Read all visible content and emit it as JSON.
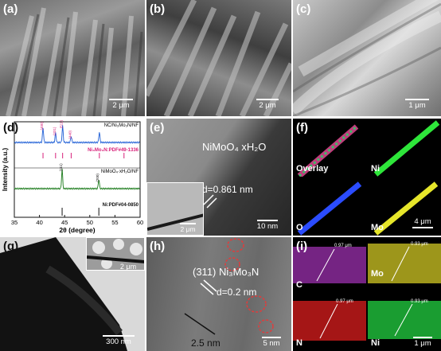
{
  "figure": {
    "panels": {
      "a": {
        "label": "(a)",
        "scale": "2 μm"
      },
      "b": {
        "label": "(b)",
        "scale": "2 μm"
      },
      "c": {
        "label": "(c)",
        "scale": "1 μm"
      },
      "d": {
        "label": "(d)"
      },
      "e": {
        "label": "(e)",
        "phase": "NiMoO₄ xH₂O",
        "dspacing": "d=0.861 nm",
        "scale_main": "10 nm",
        "scale_inset": "2 μm"
      },
      "f": {
        "label": "(f)",
        "maps": [
          "Overlay",
          "Ni",
          "O",
          "Mo"
        ],
        "scale": "4 μm"
      },
      "g": {
        "label": "(g)",
        "scale_main": "300 nm",
        "scale_inset": "2 μm"
      },
      "h": {
        "label": "(h)",
        "plane": "(311) Ni₃Mo₃N",
        "dspacing": "d=0.2 nm",
        "measure": "2.5 nm",
        "scale": "5 nm"
      },
      "i": {
        "label": "(i)",
        "maps": [
          "C",
          "Mo",
          "N",
          "Ni"
        ],
        "scale": "1 μm",
        "line_labels": [
          "0.97 μm",
          "0.93 μm",
          "0.97 μm",
          "0.93 μm"
        ]
      }
    }
  },
  "chart_data": {
    "type": "line",
    "xlabel": "2θ (degree)",
    "ylabel": "Intensity (a.u.)",
    "xlim": [
      35,
      60
    ],
    "xticks": [
      35,
      40,
      45,
      50,
      55,
      60
    ],
    "series": [
      {
        "name": "NC/Ni₃Mo₃N/NF",
        "color": "#1f5fd6",
        "peaks": [
          {
            "x": 40.7,
            "h": 0.85
          },
          {
            "x": 43.2,
            "h": 0.55
          },
          {
            "x": 44.6,
            "h": 0.95
          },
          {
            "x": 46.3,
            "h": 0.35
          },
          {
            "x": 51.9,
            "h": 0.6
          }
        ],
        "peak_labels": [
          "(400)",
          "(331)",
          "(511)",
          "(440)"
        ]
      },
      {
        "name": "NiMoO₄·xH₂O/NF",
        "color": "#1a7a1a",
        "peaks": [
          {
            "x": 44.5,
            "h": 0.95
          },
          {
            "x": 51.8,
            "h": 0.45
          }
        ],
        "peak_labels": [
          "(111)",
          "(200)"
        ]
      }
    ],
    "references": [
      {
        "name": "Ni₃Mo₃N:PDF#49-1336",
        "color": "#d8207a",
        "lines": [
          40.7,
          43.2,
          44.6,
          46.3,
          51.9,
          56.8
        ]
      },
      {
        "name": "Ni:PDF#04-0850",
        "color": "#111111",
        "lines": [
          44.5,
          51.8
        ]
      }
    ]
  }
}
